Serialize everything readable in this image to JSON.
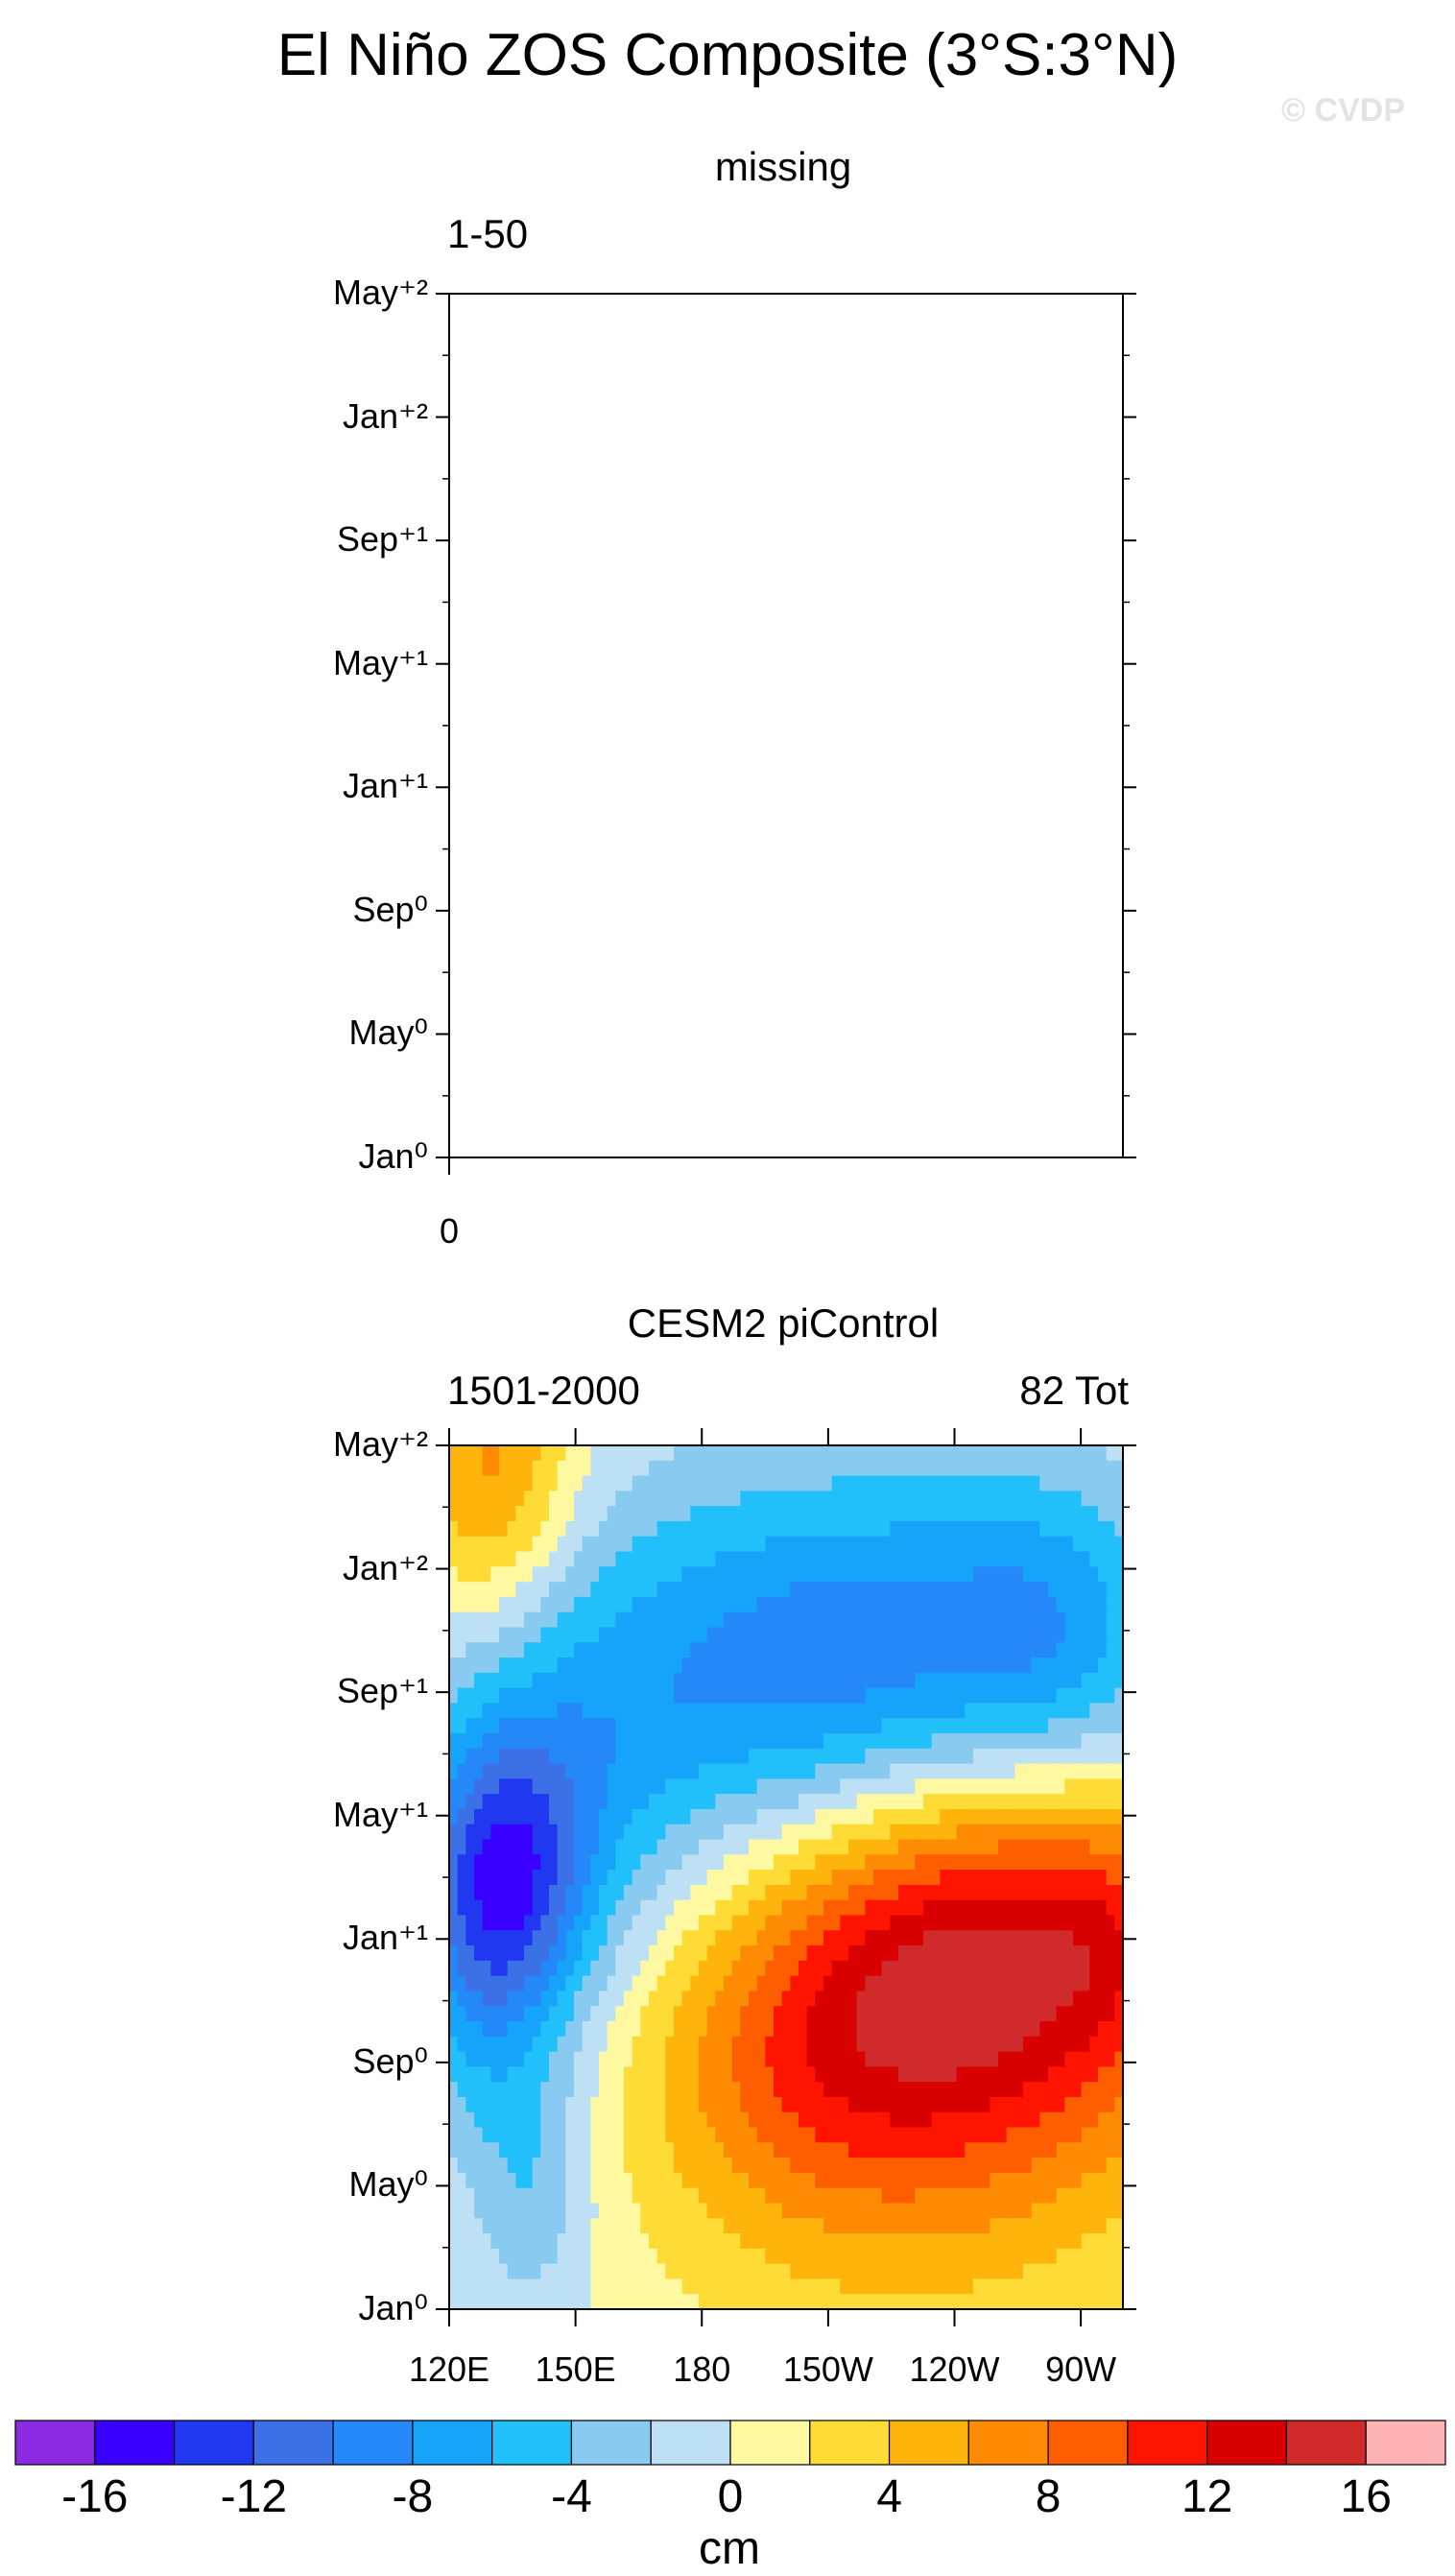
{
  "figure": {
    "title": "El Niño ZOS Composite (3°S:3°N)",
    "credit": "© CVDP"
  },
  "chart_data": [
    {
      "type": "heatmap",
      "title": "missing",
      "subtitle_left": "1-50",
      "subtitle_right": "",
      "y_ticks": [
        "Jan⁰",
        "May⁰",
        "Sep⁰",
        "Jan⁺¹",
        "May⁺¹",
        "Sep⁺¹",
        "Jan⁺²",
        "May⁺²"
      ],
      "x_ticks": [
        "0"
      ],
      "has_data": false
    },
    {
      "type": "heatmap",
      "title": "CESM2 piControl",
      "subtitle_left": "1501-2000",
      "subtitle_right": "82 Tot",
      "x_ticks": [
        "120E",
        "150E",
        "180",
        "150W",
        "120W",
        "90W"
      ],
      "y_ticks": [
        "Jan⁰",
        "May⁰",
        "Sep⁰",
        "Jan⁺¹",
        "May⁺¹",
        "Sep⁺¹",
        "Jan⁺²",
        "May⁺²"
      ],
      "x_range_deg_east": [
        120,
        280
      ],
      "y_range_months": [
        0,
        28
      ],
      "blobs": [
        {
          "lon": 250,
          "month": 12,
          "sx": 38,
          "sy": 5,
          "amp": 14
        },
        {
          "lon": 275,
          "month": 12,
          "sx": 9,
          "sy": 2.5,
          "amp": 2
        },
        {
          "lon": 205,
          "month": 8,
          "sx": 30,
          "sy": 4,
          "amp": 5
        },
        {
          "lon": 232,
          "month": 4,
          "sx": 48,
          "sy": 6,
          "amp": 3
        },
        {
          "lon": 132,
          "month": 13.5,
          "sx": 14,
          "sy": 3.5,
          "amp": -12
        },
        {
          "lon": 148,
          "month": 16,
          "sx": 22,
          "sy": 5,
          "amp": -4
        },
        {
          "lon": 220,
          "month": 20.5,
          "sx": 50,
          "sy": 4.5,
          "amp": -11
        },
        {
          "lon": 262,
          "month": 22,
          "sx": 16,
          "sy": 3.5,
          "amp": -3
        },
        {
          "lon": 130,
          "month": 27,
          "sx": 14,
          "sy": 3.5,
          "amp": 7
        },
        {
          "lon": 140,
          "month": 4,
          "sx": 10,
          "sy": 3,
          "amp": -4
        },
        {
          "lon": 125,
          "month": 8,
          "sx": 10,
          "sy": 3,
          "amp": -2
        }
      ]
    }
  ],
  "colorbar": {
    "unit": "cm",
    "levels": [
      -16,
      -14,
      -12,
      -10,
      -8,
      -6,
      -4,
      -2,
      0,
      2,
      4,
      6,
      8,
      10,
      12,
      14,
      16
    ],
    "labels": [
      "-16",
      "-12",
      "-8",
      "-4",
      "0",
      "4",
      "8",
      "12",
      "16"
    ],
    "colors": [
      "#8a2be2",
      "#3a00ff",
      "#2038f0",
      "#3c70e6",
      "#2488f8",
      "#16a4fa",
      "#22c0fa",
      "#88caf0",
      "#bde0f4",
      "#fef9a0",
      "#fedc35",
      "#feb40b",
      "#fe8b03",
      "#fe5e00",
      "#fe1400",
      "#d80000",
      "#d02a2a",
      "#feb3b6"
    ]
  }
}
